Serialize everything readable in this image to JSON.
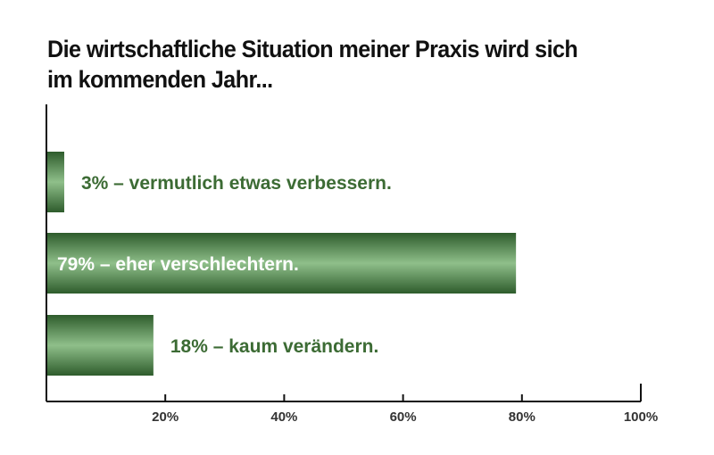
{
  "chart_data": {
    "type": "bar",
    "orientation": "horizontal",
    "title": "Die wirtschaftliche Situation meiner Praxis wird sich im kommenden Jahr...",
    "title_lines": [
      "Die wirtschaftliche Situation meiner Praxis wird sich",
      "im kommenden Jahr..."
    ],
    "categories": [
      "3% – vermutlich etwas verbessern.",
      "79% – eher verschlechtern.",
      "18% – kaum verändern."
    ],
    "values": [
      3,
      79,
      18
    ],
    "label_inside": [
      false,
      true,
      false
    ],
    "xlim": [
      0,
      100
    ],
    "ticks": [
      {
        "value": 20,
        "label": "20%"
      },
      {
        "value": 40,
        "label": "40%"
      },
      {
        "value": 60,
        "label": "60%"
      },
      {
        "value": 80,
        "label": "80%"
      },
      {
        "value": 100,
        "label": "100%"
      }
    ],
    "grid": false,
    "colors": {
      "bar_dark": "#2e5c2c",
      "bar_light": "#8fbf8a",
      "label_outside": "#3c6b34",
      "label_inside": "#ffffff",
      "axis": "#111111",
      "tick_label": "#333333"
    }
  }
}
